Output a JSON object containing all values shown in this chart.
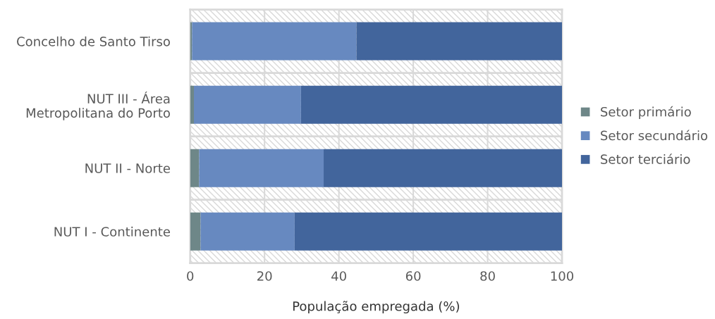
{
  "chart_data": {
    "type": "bar",
    "orientation": "horizontal",
    "stacked": true,
    "categories": [
      "Concelho de Santo Tirso",
      "NUT III - Área\nMetropolitana do Porto",
      "NUT II - Norte",
      "NUT I - Continente"
    ],
    "series": [
      {
        "name": "Setor primário",
        "color": "#6e8788",
        "values": [
          0.5,
          1.0,
          2.4,
          2.8
        ]
      },
      {
        "name": "Setor secundário",
        "color": "#6789c0",
        "values": [
          44.2,
          28.8,
          33.5,
          25.3
        ]
      },
      {
        "name": "Setor terciário",
        "color": "#42659c",
        "values": [
          55.3,
          70.2,
          64.1,
          71.9
        ]
      }
    ],
    "xlim": [
      0,
      100
    ],
    "xticks": [
      0,
      20,
      40,
      60,
      80,
      100
    ],
    "xlabel": "População empregada (%)",
    "grid": "x",
    "legend": "right"
  }
}
